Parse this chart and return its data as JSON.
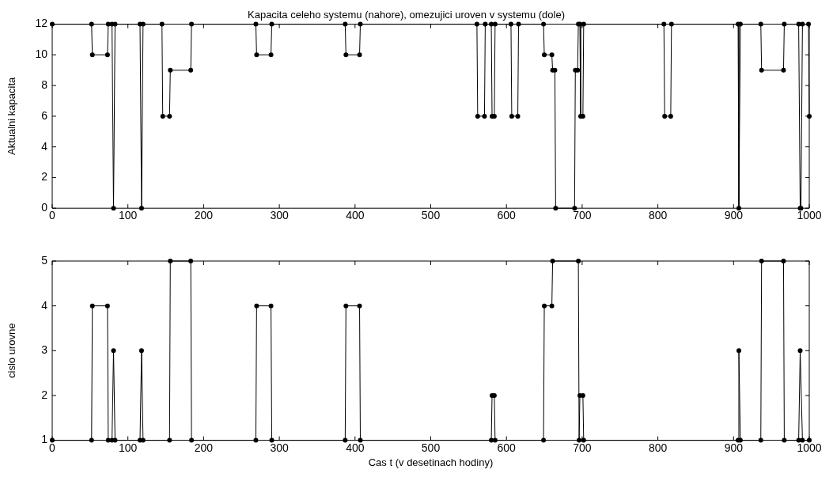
{
  "chart_data": [
    {
      "type": "line",
      "title": "Kapacita celeho systemu (nahore), omezujici uroven v systemu (dole)",
      "ylabel": "Aktualni kapacita",
      "color": "#000000",
      "marker": "circle",
      "line_style": "solid",
      "x": [
        0,
        52,
        53,
        73,
        74,
        79,
        81,
        83,
        116,
        118,
        120,
        145,
        146,
        155,
        156,
        183,
        184,
        269,
        270,
        289,
        290,
        387,
        388,
        406,
        407,
        561,
        562,
        571,
        572,
        580,
        581,
        584,
        585,
        606,
        607,
        615,
        616,
        649,
        650,
        660,
        661,
        664,
        665,
        690,
        691,
        694,
        695,
        697,
        698,
        701,
        702,
        808,
        809,
        817,
        818,
        906,
        907,
        909,
        936,
        937,
        966,
        967,
        986,
        988,
        989,
        991,
        999,
        1000
      ],
      "values": [
        12,
        12,
        10,
        10,
        12,
        12,
        0,
        12,
        12,
        0,
        12,
        12,
        6,
        6,
        9,
        9,
        12,
        12,
        10,
        10,
        12,
        12,
        10,
        10,
        12,
        12,
        6,
        6,
        12,
        12,
        6,
        6,
        12,
        12,
        6,
        6,
        12,
        12,
        10,
        10,
        9,
        9,
        0,
        0,
        9,
        9,
        12,
        12,
        6,
        6,
        12,
        12,
        6,
        6,
        12,
        12,
        0,
        12,
        12,
        9,
        9,
        12,
        12,
        0,
        0,
        12,
        12,
        6
      ],
      "xlim": [
        0,
        1000
      ],
      "xticks": [
        0,
        100,
        200,
        300,
        400,
        500,
        600,
        700,
        800,
        900,
        1000
      ],
      "ylim": [
        0,
        12
      ],
      "yticks": [
        0,
        2,
        4,
        6,
        8,
        10,
        12
      ]
    },
    {
      "type": "line",
      "xlabel": "Cas t (v desetinach hodiny)",
      "ylabel": "cislo urovne",
      "color": "#000000",
      "marker": "circle",
      "line_style": "solid",
      "x": [
        0,
        52,
        53,
        73,
        74,
        79,
        81,
        83,
        116,
        118,
        120,
        155,
        156,
        183,
        184,
        269,
        270,
        289,
        290,
        387,
        388,
        406,
        407,
        580,
        581,
        584,
        585,
        649,
        650,
        660,
        661,
        695,
        696,
        697,
        701,
        702,
        906,
        907,
        909,
        936,
        937,
        966,
        967,
        986,
        988,
        991,
        1000
      ],
      "values": [
        1,
        1,
        4,
        4,
        1,
        1,
        3,
        1,
        1,
        3,
        1,
        1,
        5,
        5,
        1,
        1,
        4,
        4,
        1,
        1,
        4,
        4,
        1,
        1,
        2,
        2,
        1,
        1,
        4,
        4,
        5,
        5,
        1,
        2,
        2,
        1,
        1,
        3,
        1,
        1,
        5,
        5,
        1,
        1,
        3,
        1,
        1
      ],
      "xlim": [
        0,
        1000
      ],
      "xticks": [
        0,
        100,
        200,
        300,
        400,
        500,
        600,
        700,
        800,
        900,
        1000
      ],
      "ylim": [
        1,
        5
      ],
      "yticks": [
        1,
        2,
        3,
        4,
        5
      ]
    }
  ]
}
